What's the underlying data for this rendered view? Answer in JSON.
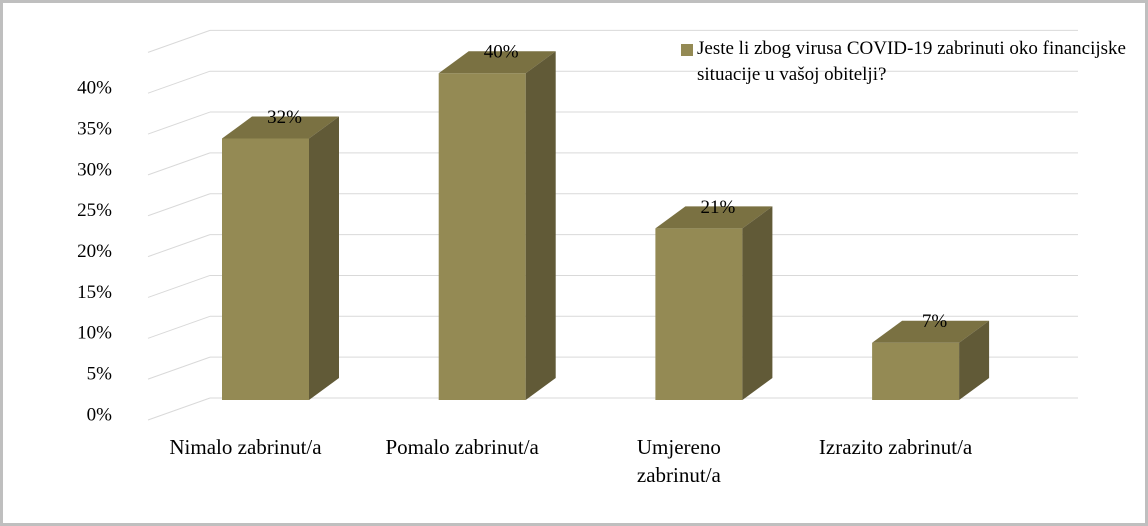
{
  "chart_data": {
    "type": "bar3d",
    "categories": [
      "Nimalo zabrinut/a",
      "Pomalo zabrinut/a",
      "Umjereno zabrinut/a",
      "Izrazito zabrinut/a"
    ],
    "series": [
      {
        "name": "Jeste li zbog virusa COVID-19 zabrinuti oko financijske situacije u vašoj obitelji?",
        "color": "#948a54",
        "values": [
          32,
          40,
          21,
          7
        ],
        "value_labels": [
          "32%",
          "40%",
          "21%",
          "7%"
        ]
      }
    ],
    "ylim": [
      0,
      45
    ],
    "yticks": [
      {
        "value": 0,
        "label": "0%"
      },
      {
        "value": 5,
        "label": "5%"
      },
      {
        "value": 10,
        "label": "10%"
      },
      {
        "value": 15,
        "label": "15%"
      },
      {
        "value": 20,
        "label": "20%"
      },
      {
        "value": 25,
        "label": "25%"
      },
      {
        "value": 30,
        "label": "30%"
      },
      {
        "value": 35,
        "label": "35%"
      },
      {
        "value": 40,
        "label": "40%"
      }
    ],
    "grid": true,
    "legend": "top-right"
  }
}
